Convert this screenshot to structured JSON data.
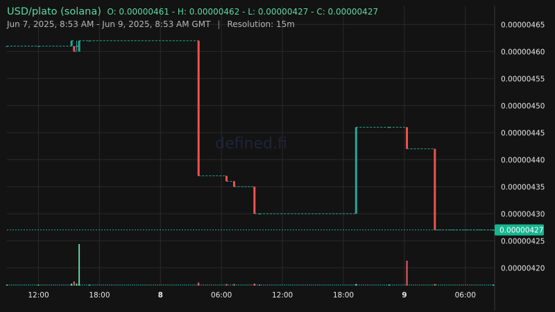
{
  "header": {
    "pair": "USD/plato (solana)",
    "ohlc": "O: 0.00000461 - H: 0.00000462 - L: 0.00000427 - C: 0.00000427",
    "range": "Jun 7, 2025, 8:53 AM - Jun 9, 2025, 8:53 AM GMT",
    "separator": "|",
    "resolution": "Resolution: 15m"
  },
  "watermark": "defined.fi",
  "colors": {
    "up": "#26a69a",
    "down": "#ef5350",
    "background": "#131313",
    "grid": "#2a2a2a",
    "accent": "#5ed8a6"
  },
  "chart_data": {
    "type": "candlestick",
    "ylim": [
      4.167e-06,
      4.685e-06
    ],
    "y_ticks": [
      "0.00000465",
      "0.00000460",
      "0.00000455",
      "0.00000450",
      "0.00000445",
      "0.00000440",
      "0.00000435",
      "0.00000430",
      "0.00000425",
      "0.00000420"
    ],
    "x_ticks": [
      {
        "label": "12:00",
        "bold": false
      },
      {
        "label": "18:00",
        "bold": false
      },
      {
        "label": "8",
        "bold": true
      },
      {
        "label": "06:00",
        "bold": false
      },
      {
        "label": "12:00",
        "bold": false
      },
      {
        "label": "18:00",
        "bold": false
      },
      {
        "label": "9",
        "bold": true
      },
      {
        "label": "06:00",
        "bold": false
      }
    ],
    "last_price": "0.00000427",
    "candles": [
      {
        "t": "Jun 7 08:53",
        "o": 4.61e-06,
        "h": 4.61e-06,
        "l": 4.61e-06,
        "c": 4.61e-06,
        "v": 0.5
      },
      {
        "t": "Jun 7 12:00",
        "o": 4.61e-06,
        "h": 4.61e-06,
        "l": 4.61e-06,
        "c": 4.61e-06,
        "v": 0.5
      },
      {
        "t": "Jun 7 15:15",
        "o": 4.61e-06,
        "h": 4.62e-06,
        "l": 4.61e-06,
        "c": 4.62e-06,
        "v": 1
      },
      {
        "t": "Jun 7 15:30",
        "o": 4.61e-06,
        "h": 4.61e-06,
        "l": 4.6e-06,
        "c": 4.6e-06,
        "v": 2
      },
      {
        "t": "Jun 7 15:45",
        "o": 4.61e-06,
        "h": 4.62e-06,
        "l": 4.6e-06,
        "c": 4.61e-06,
        "v": 1
      },
      {
        "t": "Jun 7 16:00",
        "o": 4.6e-06,
        "h": 4.62e-06,
        "l": 4.6e-06,
        "c": 4.62e-06,
        "v": 20
      },
      {
        "t": "Jun 7 17:00",
        "o": 4.62e-06,
        "h": 4.62e-06,
        "l": 4.62e-06,
        "c": 4.62e-06,
        "v": 0.5
      },
      {
        "t": "Jun 8 03:45",
        "o": 4.62e-06,
        "h": 4.62e-06,
        "l": 4.37e-06,
        "c": 4.37e-06,
        "v": 1.5
      },
      {
        "t": "Jun 8 06:30",
        "o": 4.37e-06,
        "h": 4.37e-06,
        "l": 4.36e-06,
        "c": 4.36e-06,
        "v": 0.8
      },
      {
        "t": "Jun 8 07:15",
        "o": 4.36e-06,
        "h": 4.36e-06,
        "l": 4.35e-06,
        "c": 4.35e-06,
        "v": 0.8
      },
      {
        "t": "Jun 8 09:15",
        "o": 4.35e-06,
        "h": 4.35e-06,
        "l": 4.3e-06,
        "c": 4.3e-06,
        "v": 1
      },
      {
        "t": "Jun 8 09:45",
        "o": 4.3e-06,
        "h": 4.3e-06,
        "l": 4.3e-06,
        "c": 4.3e-06,
        "v": 0.5
      },
      {
        "t": "Jun 8 19:15",
        "o": 4.3e-06,
        "h": 4.46e-06,
        "l": 4.3e-06,
        "c": 4.46e-06,
        "v": 0.8
      },
      {
        "t": "Jun 8 22:30",
        "o": 4.46e-06,
        "h": 4.46e-06,
        "l": 4.46e-06,
        "c": 4.46e-06,
        "v": 0.5
      },
      {
        "t": "Jun 9 00:15",
        "o": 4.46e-06,
        "h": 4.46e-06,
        "l": 4.42e-06,
        "c": 4.42e-06,
        "v": 12
      },
      {
        "t": "Jun 9 03:00",
        "o": 4.42e-06,
        "h": 4.42e-06,
        "l": 4.27e-06,
        "c": 4.27e-06,
        "v": 0.8
      },
      {
        "t": "Jun 9 08:45",
        "o": 4.27e-06,
        "h": 4.27e-06,
        "l": 4.27e-06,
        "c": 4.27e-06,
        "v": 0.5
      }
    ]
  }
}
